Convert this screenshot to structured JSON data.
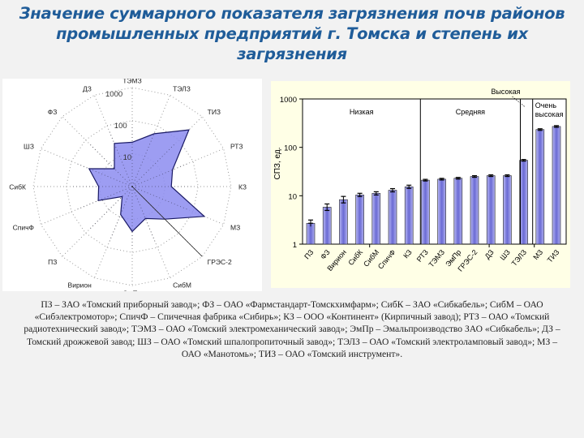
{
  "title": {
    "line1": "Значение суммарного показателя загрязнения почв районов",
    "line2": "промышленных предприятий г. Томска и степень их загрязнения"
  },
  "colors": {
    "title": "#1f5c99",
    "fill": "#8c8cf0",
    "bar": "#7a7ae0",
    "bar_panel_bg": "#ffffe6",
    "page_bg": "#f2f2f2"
  },
  "chart_data": [
    {
      "type": "radar",
      "title": "",
      "scale": "log",
      "ring_labels": [
        "10",
        "100",
        "1000"
      ],
      "axes": [
        "ТЭМЗ",
        "ТЭЛЗ",
        "ТИЗ",
        "РТЗ",
        "КЗ",
        "МЗ",
        "ГРЭС-2",
        "СибМ",
        "ЭмПр",
        "Вирион",
        "ПЗ",
        "СпичФ",
        "СибК",
        "ШЗ",
        "ФЗ",
        "ДЗ"
      ],
      "values": [
        22,
        54,
        270,
        21,
        15.3,
        233,
        25,
        11.2,
        23,
        8.3,
        2.7,
        13,
        10.4,
        26,
        5.8,
        26
      ]
    },
    {
      "type": "bar",
      "title": "",
      "xlabel": "",
      "ylabel": "СПЗ, ед.",
      "yscale": "log",
      "ylim": [
        1,
        1000
      ],
      "yticks": [
        "1",
        "10",
        "100",
        "1000"
      ],
      "categories": [
        "ПЗ",
        "ФЗ",
        "Вирион",
        "СибК",
        "СибМ",
        "СпичФ",
        "КЗ",
        "РТЗ",
        "ТЭМЗ",
        "ЭмПр",
        "ГРЭС-2",
        "ДЗ",
        "ШЗ",
        "ТЭЛЗ",
        "МЗ",
        "ТИЗ"
      ],
      "values": [
        2.7,
        5.8,
        8.3,
        10.4,
        11.2,
        13,
        15.3,
        21,
        22,
        23,
        25,
        26,
        26,
        54,
        233,
        270
      ],
      "error_bars": true,
      "zones": [
        {
          "label": "Низкая",
          "from": "ПЗ",
          "to": "КЗ"
        },
        {
          "label": "Средняя",
          "from": "РТЗ",
          "to": "ШЗ"
        },
        {
          "label": "Высокая",
          "from": "ТЭЛЗ",
          "to": "ТЭЛЗ"
        },
        {
          "label": "Очень высокая",
          "from": "МЗ",
          "to": "ТИЗ"
        }
      ],
      "grid": false,
      "legend": "none"
    }
  ],
  "caption": "ПЗ – ЗАО «Томский приборный завод»; ФЗ – ОАО «Фармстандарт-Томскхимфарм»; СибК – ЗАО «Сибкабель»; СибМ – ОАО «Сибэлектромотор»; СпичФ – Спичечная фабрика «Сибирь»; КЗ – ООО «Континент» (Кирпичный завод); РТЗ – ОАО «Томский радиотехнический завод»; ТЭМЗ – ОАО «Томский электромеханический завод»; ЭмПр – Эмальпроизводство ЗАО «Сибкабель»; ДЗ – Томский дрожжевой завод; ШЗ – ОАО «Томский шпалопропиточный завод»; ТЭЛЗ – ОАО «Томский электроламповый завод»; МЗ – ОАО «Манотомь»; ТИЗ – ОАО «Томский инструмент»."
}
